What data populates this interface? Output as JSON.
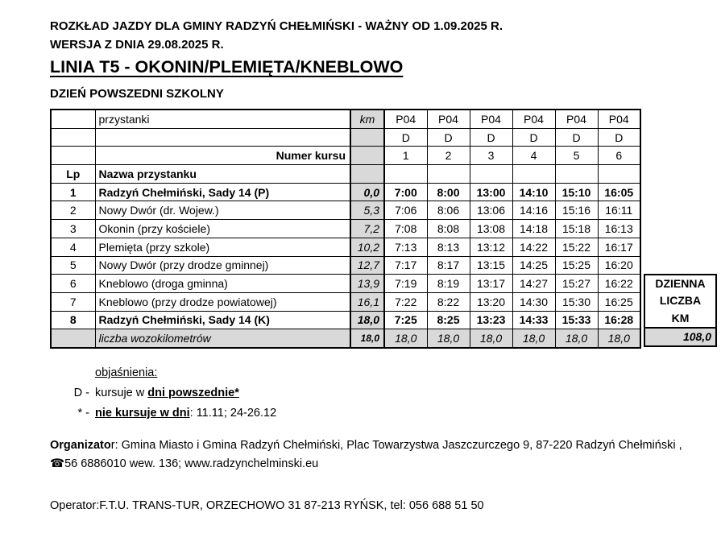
{
  "header": {
    "line1": "ROZKŁAD JAZDY DLA GMINY RADZYŃ CHEŁMIŃSKI - WAŻNY OD 1.09.2025 R.",
    "line2": "WERSJA Z DNIA 29.08.2025 R.",
    "title": "LINIA T5 - OKONIN/PLEMIĘTA/KNEBLOWO",
    "day_type": "DZIEŃ POWSZEDNI SZKOLNY"
  },
  "table": {
    "col_przystanki": "przystanki",
    "col_km": "km",
    "route_codes": [
      "P04",
      "P04",
      "P04",
      "P04",
      "P04",
      "P04"
    ],
    "day_codes": [
      "D",
      "D",
      "D",
      "D",
      "D",
      "D"
    ],
    "numer_kursu_label": "Numer kursu",
    "course_numbers": [
      "1",
      "2",
      "3",
      "4",
      "5",
      "6"
    ],
    "col_lp": "Lp",
    "col_nazwa": "Nazwa przystanku",
    "rows": [
      {
        "lp": "1",
        "name": "Radzyń Chełmiński, Sady 14 (P)",
        "km": "0,0",
        "times": [
          "7:00",
          "8:00",
          "13:00",
          "14:10",
          "15:10",
          "16:05"
        ],
        "bold": true
      },
      {
        "lp": "2",
        "name": "Nowy Dwór (dr. Wojew.)",
        "km": "5,3",
        "times": [
          "7:06",
          "8:06",
          "13:06",
          "14:16",
          "15:16",
          "16:11"
        ],
        "bold": false
      },
      {
        "lp": "3",
        "name": "Okonin (przy kościele)",
        "km": "7,2",
        "times": [
          "7:08",
          "8:08",
          "13:08",
          "14:18",
          "15:18",
          "16:13"
        ],
        "bold": false
      },
      {
        "lp": "4",
        "name": "Plemięta (przy szkole)",
        "km": "10,2",
        "times": [
          "7:13",
          "8:13",
          "13:12",
          "14:22",
          "15:22",
          "16:17"
        ],
        "bold": false
      },
      {
        "lp": "5",
        "name": "Nowy Dwór (przy drodze gminnej)",
        "km": "12,7",
        "times": [
          "7:17",
          "8:17",
          "13:15",
          "14:25",
          "15:25",
          "16:20"
        ],
        "bold": false
      },
      {
        "lp": "6",
        "name": "Kneblowo (droga gminna)",
        "km": "13,9",
        "times": [
          "7:19",
          "8:19",
          "13:17",
          "14:27",
          "15:27",
          "16:22"
        ],
        "bold": false
      },
      {
        "lp": "7",
        "name": "Kneblowo (przy drodze powiatowej)",
        "km": "16,1",
        "times": [
          "7:22",
          "8:22",
          "13:20",
          "14:30",
          "15:30",
          "16:25"
        ],
        "bold": false
      },
      {
        "lp": "8",
        "name": "Radzyń Chełmiński, Sady 14 (K)",
        "km": "18,0",
        "times": [
          "7:25",
          "8:25",
          "13:23",
          "14:33",
          "15:33",
          "16:28"
        ],
        "bold": true
      }
    ],
    "summary": {
      "label": "liczba wozokilometrów",
      "km": "18,0",
      "values": [
        "18,0",
        "18,0",
        "18,0",
        "18,0",
        "18,0",
        "18,0"
      ]
    },
    "daily_km_box": {
      "lines": [
        "DZIENNA",
        "LICZBA",
        "KM"
      ],
      "total": "108,0"
    }
  },
  "legend": {
    "title": "objaśnienia:",
    "items": [
      {
        "symbol": "D -",
        "plain_before": "kursuje w ",
        "bold_underlined": "dni powszednie*",
        "plain_after": ""
      },
      {
        "symbol": "* -",
        "plain_before": "",
        "bold_underlined": "nie kursuje w dni",
        "plain_after": ": 11.11; 24-26.12"
      }
    ]
  },
  "organizer": {
    "label_bold": "Organizato",
    "line1_rest": "r: Gmina Miasto i Gmina Radzyń Chełmiński, Plac Towarzystwa Jaszczurczego 9, 87-220 Radzyń Chełmiński ,",
    "phone_icon": "☎",
    "line2": "56 6886010 wew. 136; www.radzynchelminski.eu"
  },
  "operator_line": "Operator:F.T.U. TRANS-TUR, ORZECHOWO 31 87-213 RYŃSK, tel: 056 688 51 50",
  "colors": {
    "cell_gray": "#d9d9d9",
    "border_black": "#000000",
    "page_white": "#ffffff"
  }
}
